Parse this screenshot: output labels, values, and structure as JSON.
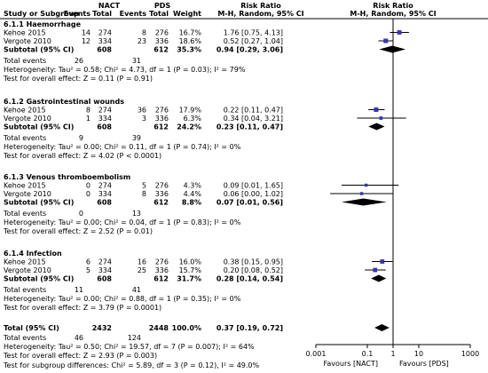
{
  "header": {
    "group1": "NACT",
    "group2": "PDS",
    "rr_title": "Risk Ratio",
    "rr_method": "M-H, Random, 95% CI",
    "study_col": "Study or Subgroup",
    "events": "Events",
    "total": "Total",
    "weight": "Weight"
  },
  "chart_data": {
    "type": "forest",
    "x_scale": "log",
    "xlim": [
      0.001,
      1000
    ],
    "xticks": [
      "0.001",
      "0.1",
      "1",
      "10",
      "1000"
    ],
    "favours_left": "Favours [NACT]",
    "favours_right": "Favours [PDS]",
    "subgroups": [
      {
        "title": "6.1.1 Haemorrhage",
        "studies": [
          {
            "name": "Kehoe 2015",
            "e1": "14",
            "n1": "274",
            "e2": "8",
            "n2": "276",
            "weight": "16.7%",
            "ci_text": "1.76 [0.75, 4.13]",
            "rr": 1.76,
            "lo": 0.75,
            "hi": 4.13,
            "w": 16.7
          },
          {
            "name": "Vergote 2010",
            "e1": "12",
            "n1": "334",
            "e2": "23",
            "n2": "336",
            "weight": "18.6%",
            "ci_text": "0.52 [0.27, 1.04]",
            "rr": 0.52,
            "lo": 0.27,
            "hi": 1.04,
            "w": 18.6
          }
        ],
        "subtotal": {
          "label": "Subtotal (95% CI)",
          "n1": "608",
          "n2": "612",
          "weight": "35.3%",
          "ci_text": "0.94 [0.29, 3.06]",
          "rr": 0.94,
          "lo": 0.29,
          "hi": 3.06
        },
        "total_events_label": "Total events",
        "te1": "26",
        "te2": "31",
        "heterogeneity": "Heterogeneity: Tau² = 0.58; Chi² = 4.73, df = 1 (P = 0.03); I² = 79%",
        "overall": "Test for overall effect: Z = 0.11 (P = 0.91)"
      },
      {
        "title": "6.1.2 Gastrointestinal wounds",
        "studies": [
          {
            "name": "Kehoe 2015",
            "e1": "8",
            "n1": "274",
            "e2": "36",
            "n2": "276",
            "weight": "17.9%",
            "ci_text": "0.22 [0.11, 0.47]",
            "rr": 0.22,
            "lo": 0.11,
            "hi": 0.47,
            "w": 17.9
          },
          {
            "name": "Vergote 2010",
            "e1": "1",
            "n1": "334",
            "e2": "3",
            "n2": "336",
            "weight": "6.3%",
            "ci_text": "0.34 [0.04, 3.21]",
            "rr": 0.34,
            "lo": 0.04,
            "hi": 3.21,
            "w": 6.3
          }
        ],
        "subtotal": {
          "label": "Subtotal (95% CI)",
          "n1": "608",
          "n2": "612",
          "weight": "24.2%",
          "ci_text": "0.23 [0.11, 0.47]",
          "rr": 0.23,
          "lo": 0.11,
          "hi": 0.47
        },
        "total_events_label": "Total events",
        "te1": "9",
        "te2": "39",
        "heterogeneity": "Heterogeneity: Tau² = 0.00; Chi² = 0.11, df = 1 (P = 0.74); I² = 0%",
        "overall": "Test for overall effect: Z = 4.02 (P < 0.0001)"
      },
      {
        "title": "6.1.3 Venous thromboembolism",
        "studies": [
          {
            "name": "Kehoe 2015",
            "e1": "0",
            "n1": "274",
            "e2": "5",
            "n2": "276",
            "weight": "4.3%",
            "ci_text": "0.09 [0.01, 1.65]",
            "rr": 0.09,
            "lo": 0.01,
            "hi": 1.65,
            "w": 4.3
          },
          {
            "name": "Vergote 2010",
            "e1": "0",
            "n1": "334",
            "e2": "8",
            "n2": "336",
            "weight": "4.4%",
            "ci_text": "0.06 [0.00, 1.02]",
            "rr": 0.06,
            "lo": 0.0036,
            "hi": 1.02,
            "w": 4.4
          }
        ],
        "subtotal": {
          "label": "Subtotal (95% CI)",
          "n1": "608",
          "n2": "612",
          "weight": "8.8%",
          "ci_text": "0.07 [0.01, 0.56]",
          "rr": 0.07,
          "lo": 0.01,
          "hi": 0.56
        },
        "total_events_label": "Total events",
        "te1": "0",
        "te2": "13",
        "heterogeneity": "Heterogeneity: Tau² = 0.00; Chi² = 0.04, df = 1 (P = 0.83); I² = 0%",
        "overall": "Test for overall effect: Z = 2.52 (P = 0.01)"
      },
      {
        "title": "6.1.4 Infection",
        "studies": [
          {
            "name": "Kehoe 2015",
            "e1": "6",
            "n1": "274",
            "e2": "16",
            "n2": "276",
            "weight": "16.0%",
            "ci_text": "0.38 [0.15, 0.95]",
            "rr": 0.38,
            "lo": 0.15,
            "hi": 0.95,
            "w": 16.0
          },
          {
            "name": "Vergote 2010",
            "e1": "5",
            "n1": "334",
            "e2": "25",
            "n2": "336",
            "weight": "15.7%",
            "ci_text": "0.20 [0.08, 0.52]",
            "rr": 0.2,
            "lo": 0.08,
            "hi": 0.52,
            "w": 15.7
          }
        ],
        "subtotal": {
          "label": "Subtotal (95% CI)",
          "n1": "608",
          "n2": "612",
          "weight": "31.7%",
          "ci_text": "0.28 [0.14, 0.54]",
          "rr": 0.28,
          "lo": 0.14,
          "hi": 0.54
        },
        "total_events_label": "Total events",
        "te1": "11",
        "te2": "41",
        "heterogeneity": "Heterogeneity: Tau² = 0.00; Chi² = 0.88, df = 1 (P = 0.35); I² = 0%",
        "overall": "Test for overall effect: Z = 3.79 (P = 0.0001)"
      }
    ],
    "total": {
      "label": "Total (95% CI)",
      "n1": "2432",
      "n2": "2448",
      "weight": "100.0%",
      "ci_text": "0.37 [0.19, 0.72]",
      "rr": 0.37,
      "lo": 0.19,
      "hi": 0.72,
      "total_events_label": "Total events",
      "te1": "46",
      "te2": "124",
      "heterogeneity": "Heterogeneity: Tau² = 0.50; Chi² = 19.57, df = 7 (P = 0.007); I² = 64%",
      "overall": "Test for overall effect: Z = 2.93 (P = 0.003)",
      "subgroup_diff": "Test for subgroup differences: Chi² = 5.89, df = 3 (P = 0.12), I² = 49.0%"
    }
  }
}
